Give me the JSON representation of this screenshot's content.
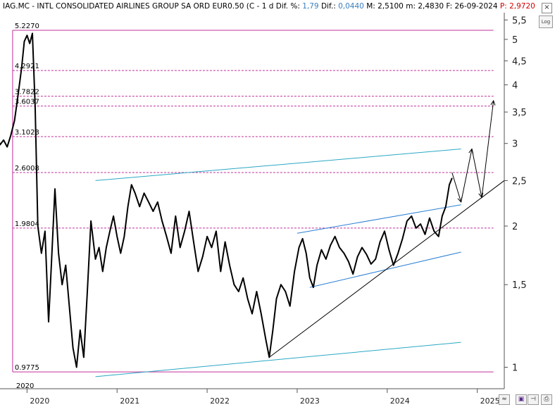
{
  "header": {
    "ticker": "IAG.MC - INTL CONSOLIDATED AIRLINES GROUP SA ORD EUR0.50 (C - 1 d",
    "dif_pct_label": "Dif. %:",
    "dif_pct_value": "1,79",
    "dif_label": "Dif.:",
    "dif_value": "0,0440",
    "max_label": "M: 2,5100",
    "min_label": "m: 2,4830",
    "date_label": "F: 26-09-2024",
    "price_label": "P:",
    "price_value": "2,9720"
  },
  "controls": {
    "close_glyph": "×",
    "log_label": "Log"
  },
  "chart_data": {
    "type": "line",
    "title": "IAG.MC - INTL CONSOLIDATED AIRLINES GROUP SA ORD EUR0.50 (C - 1 d",
    "yscale": "log",
    "ylim": [
      0.9,
      5.7
    ],
    "xlim": [
      2019.7,
      2025.3
    ],
    "y_ticks": [
      {
        "value": 5.5,
        "label": "5,5"
      },
      {
        "value": 5.0,
        "label": "5"
      },
      {
        "value": 4.5,
        "label": "4,5"
      },
      {
        "value": 4.0,
        "label": "4"
      },
      {
        "value": 3.5,
        "label": "3,5"
      },
      {
        "value": 3.0,
        "label": "3"
      },
      {
        "value": 2.5,
        "label": "2,5"
      },
      {
        "value": 2.0,
        "label": "2"
      },
      {
        "value": 1.5,
        "label": "1,5"
      },
      {
        "value": 1.0,
        "label": "1"
      }
    ],
    "x_ticks": [
      {
        "value": 2020,
        "label": "2020"
      },
      {
        "value": 2021,
        "label": "2021"
      },
      {
        "value": 2022,
        "label": "2022"
      },
      {
        "value": 2023,
        "label": "2023"
      },
      {
        "value": 2024,
        "label": "2024"
      },
      {
        "value": 2025,
        "label": "2025"
      }
    ],
    "fib_marker_label": "2020",
    "fib_range": {
      "x_start": 2019.84,
      "x_end": 2025.18,
      "high": 5.227,
      "low": 0.9775
    },
    "fib_levels": [
      {
        "value": 5.227,
        "label": "5.2270"
      },
      {
        "value": 4.2921,
        "label": "4.2921"
      },
      {
        "value": 3.7822,
        "label": "3.7822"
      },
      {
        "value": 3.6037,
        "label": "3.6037"
      },
      {
        "value": 3.1023,
        "label": "3.1023"
      },
      {
        "value": 2.6008,
        "label": "2.6008"
      },
      {
        "value": 1.9804,
        "label": "1.9804"
      },
      {
        "value": 0.9775,
        "label": "0.9775"
      }
    ],
    "series": [
      {
        "points": [
          [
            2019.6,
            3.4
          ],
          [
            2019.65,
            3.22
          ],
          [
            2019.7,
            2.98
          ],
          [
            2019.74,
            3.05
          ],
          [
            2019.78,
            2.95
          ],
          [
            2019.82,
            3.12
          ],
          [
            2019.86,
            3.35
          ],
          [
            2019.9,
            3.8
          ],
          [
            2019.94,
            4.35
          ],
          [
            2019.97,
            4.95
          ],
          [
            2020.0,
            5.1
          ],
          [
            2020.03,
            4.9
          ],
          [
            2020.06,
            5.15
          ],
          [
            2020.09,
            3.6
          ],
          [
            2020.12,
            2.0
          ],
          [
            2020.16,
            1.75
          ],
          [
            2020.2,
            1.95
          ],
          [
            2020.24,
            1.25
          ],
          [
            2020.27,
            1.65
          ],
          [
            2020.31,
            2.4
          ],
          [
            2020.35,
            1.75
          ],
          [
            2020.39,
            1.5
          ],
          [
            2020.43,
            1.65
          ],
          [
            2020.47,
            1.35
          ],
          [
            2020.51,
            1.1
          ],
          [
            2020.55,
            1.0
          ],
          [
            2020.59,
            1.2
          ],
          [
            2020.63,
            1.05
          ],
          [
            2020.67,
            1.45
          ],
          [
            2020.71,
            2.05
          ],
          [
            2020.76,
            1.7
          ],
          [
            2020.8,
            1.8
          ],
          [
            2020.84,
            1.6
          ],
          [
            2020.88,
            1.8
          ],
          [
            2020.92,
            1.95
          ],
          [
            2020.96,
            2.1
          ],
          [
            2021.0,
            1.9
          ],
          [
            2021.04,
            1.75
          ],
          [
            2021.08,
            1.9
          ],
          [
            2021.12,
            2.2
          ],
          [
            2021.16,
            2.45
          ],
          [
            2021.2,
            2.35
          ],
          [
            2021.25,
            2.2
          ],
          [
            2021.3,
            2.35
          ],
          [
            2021.35,
            2.25
          ],
          [
            2021.4,
            2.15
          ],
          [
            2021.45,
            2.25
          ],
          [
            2021.5,
            2.05
          ],
          [
            2021.55,
            1.9
          ],
          [
            2021.6,
            1.75
          ],
          [
            2021.65,
            2.1
          ],
          [
            2021.7,
            1.8
          ],
          [
            2021.75,
            1.95
          ],
          [
            2021.8,
            2.15
          ],
          [
            2021.85,
            1.85
          ],
          [
            2021.9,
            1.6
          ],
          [
            2021.95,
            1.72
          ],
          [
            2022.0,
            1.9
          ],
          [
            2022.05,
            1.8
          ],
          [
            2022.1,
            1.95
          ],
          [
            2022.15,
            1.6
          ],
          [
            2022.2,
            1.85
          ],
          [
            2022.25,
            1.65
          ],
          [
            2022.3,
            1.5
          ],
          [
            2022.35,
            1.45
          ],
          [
            2022.4,
            1.55
          ],
          [
            2022.45,
            1.4
          ],
          [
            2022.5,
            1.3
          ],
          [
            2022.55,
            1.45
          ],
          [
            2022.6,
            1.3
          ],
          [
            2022.65,
            1.15
          ],
          [
            2022.69,
            1.05
          ],
          [
            2022.73,
            1.2
          ],
          [
            2022.77,
            1.4
          ],
          [
            2022.82,
            1.5
          ],
          [
            2022.87,
            1.45
          ],
          [
            2022.92,
            1.35
          ],
          [
            2022.97,
            1.6
          ],
          [
            2023.02,
            1.8
          ],
          [
            2023.06,
            1.88
          ],
          [
            2023.1,
            1.75
          ],
          [
            2023.14,
            1.55
          ],
          [
            2023.18,
            1.48
          ],
          [
            2023.22,
            1.65
          ],
          [
            2023.27,
            1.78
          ],
          [
            2023.32,
            1.7
          ],
          [
            2023.37,
            1.82
          ],
          [
            2023.42,
            1.9
          ],
          [
            2023.47,
            1.8
          ],
          [
            2023.52,
            1.75
          ],
          [
            2023.57,
            1.68
          ],
          [
            2023.62,
            1.58
          ],
          [
            2023.67,
            1.72
          ],
          [
            2023.72,
            1.8
          ],
          [
            2023.77,
            1.74
          ],
          [
            2023.82,
            1.66
          ],
          [
            2023.87,
            1.7
          ],
          [
            2023.92,
            1.85
          ],
          [
            2023.97,
            1.95
          ],
          [
            2024.02,
            1.78
          ],
          [
            2024.07,
            1.65
          ],
          [
            2024.12,
            1.75
          ],
          [
            2024.17,
            1.88
          ],
          [
            2024.22,
            2.05
          ],
          [
            2024.27,
            2.1
          ],
          [
            2024.32,
            1.98
          ],
          [
            2024.37,
            2.02
          ],
          [
            2024.42,
            1.92
          ],
          [
            2024.47,
            2.08
          ],
          [
            2024.52,
            1.95
          ],
          [
            2024.57,
            1.9
          ],
          [
            2024.61,
            2.1
          ],
          [
            2024.65,
            2.2
          ],
          [
            2024.69,
            2.45
          ],
          [
            2024.72,
            2.53
          ]
        ]
      }
    ],
    "projection_path": [
      [
        2024.72,
        2.6
      ],
      [
        2024.82,
        2.25
      ],
      [
        2024.94,
        2.92
      ],
      [
        2025.05,
        2.3
      ],
      [
        2025.18,
        3.7
      ]
    ],
    "trendlines": [
      {
        "color": "#2aa8c4",
        "from": [
          2020.76,
          2.5
        ],
        "to": [
          2024.82,
          2.92
        ]
      },
      {
        "color": "#2aa8c4",
        "from": [
          2020.76,
          0.955
        ],
        "to": [
          2024.82,
          1.13
        ]
      },
      {
        "color": "#2a7fd4",
        "from": [
          2023.0,
          1.93
        ],
        "to": [
          2024.82,
          2.22
        ]
      },
      {
        "color": "#2a7fd4",
        "from": [
          2023.14,
          1.48
        ],
        "to": [
          2024.82,
          1.76
        ]
      },
      {
        "color": "#000000",
        "from": [
          2022.69,
          1.05
        ],
        "to": [
          2025.3,
          2.5
        ]
      }
    ]
  }
}
